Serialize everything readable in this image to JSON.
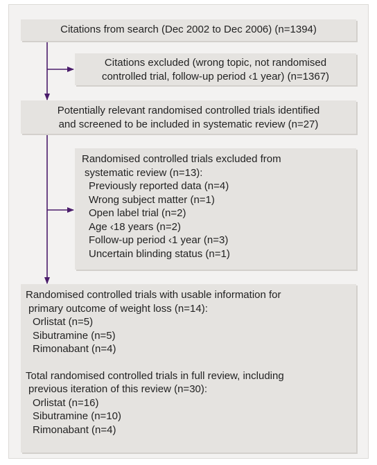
{
  "nodes": [
    {
      "lines": [
        "Citations from search (Dec 2002 to Dec 2006) (n=1394)"
      ]
    },
    {
      "lines": [
        "Citations excluded (wrong topic, not randomised",
        "controlled trial, follow-up period ‹1 year) (n=1367)"
      ]
    },
    {
      "lines": [
        "Potentially relevant randomised controlled trials identified",
        "and screened to be included in systematic review (n=27)"
      ]
    },
    {
      "heading": [
        "Randomised controlled trials excluded from",
        "systematic review (n=13):"
      ],
      "items": [
        "Previously reported data (n=4)",
        "Wrong subject matter (n=1)",
        "Open label trial (n=2)",
        "Age ‹18 years (n=2)",
        "Follow-up period ‹1 year (n=3)",
        "Uncertain blinding status (n=1)"
      ]
    },
    {
      "groups": [
        {
          "heading": [
            "Randomised controlled trials with usable information for",
            "primary outcome of weight loss (n=14):"
          ],
          "items": [
            "Orlistat (n=5)",
            "Sibutramine (n=5)",
            "Rimonabant (n=4)"
          ]
        },
        {
          "heading": [
            "Total randomised controlled trials in full review, including",
            "previous iteration of this review (n=30):"
          ],
          "items": [
            "Orlistat (n=16)",
            "Sibutramine (n=10)",
            "Rimonabant (n=4)"
          ]
        }
      ]
    }
  ]
}
